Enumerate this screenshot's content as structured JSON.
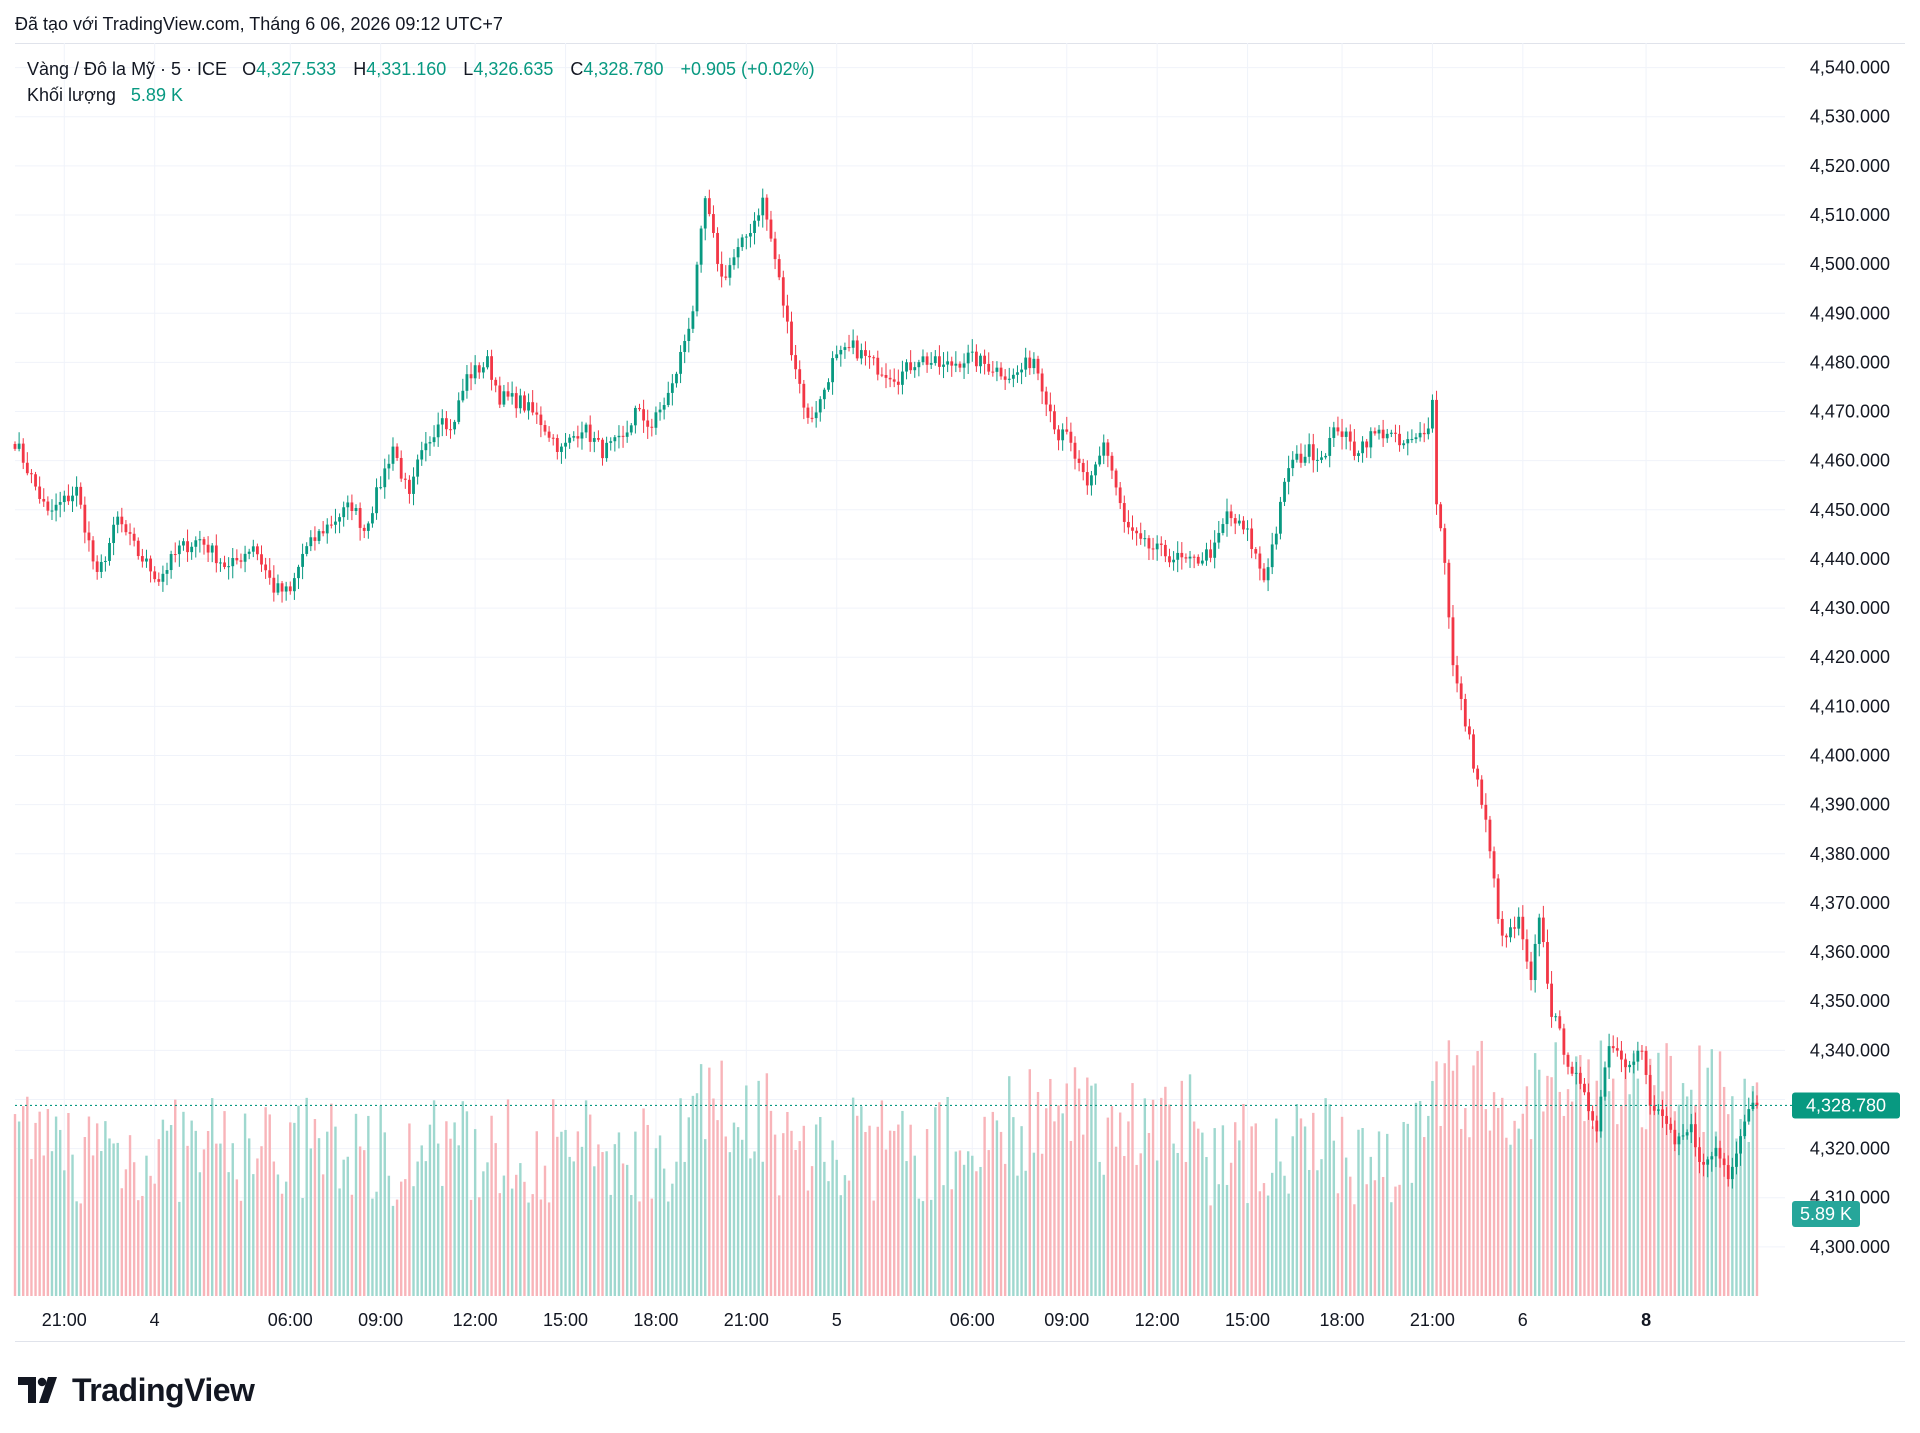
{
  "header": {
    "created_text": "Đã tạo với TradingView.com, Tháng 6 06, 2026 09:12 UTC+7"
  },
  "legend": {
    "symbol": "Vàng / Đô la Mỹ · 5 · ICE",
    "open_label": "O",
    "open": "4,327.533",
    "high_label": "H",
    "high": "4,331.160",
    "low_label": "L",
    "low": "4,326.635",
    "close_label": "C",
    "close": "4,328.780",
    "change": "+0.905 (+0.02%)",
    "volume_label": "Khối lượng",
    "volume_value": "5.89 K"
  },
  "colors": {
    "up": "#089981",
    "down": "#f23645",
    "up_volume": "#9fd8cf",
    "down_volume": "#f8b4b9",
    "grid": "#f0f3fa",
    "text": "#131722"
  },
  "brand": {
    "name": "TradingView",
    "logo_icon": "tradingview-logo-icon"
  },
  "chart_data": {
    "type": "candlestick",
    "title": "Vàng / Đô la Mỹ · 5 · ICE",
    "interval": "5",
    "y_axis": {
      "position": "right",
      "ylim": [
        4290,
        4545
      ],
      "ticks": [
        "4,300.000",
        "4,310.000",
        "4,320.000",
        "4,330.000",
        "4,340.000",
        "4,350.000",
        "4,360.000",
        "4,370.000",
        "4,380.000",
        "4,390.000",
        "4,400.000",
        "4,410.000",
        "4,420.000",
        "4,430.000",
        "4,440.000",
        "4,450.000",
        "4,460.000",
        "4,470.000",
        "4,480.000",
        "4,490.000",
        "4,500.000",
        "4,510.000",
        "4,520.000",
        "4,530.000",
        "4,540.000"
      ],
      "tick_values": [
        4300,
        4310,
        4320,
        4330,
        4340,
        4350,
        4360,
        4370,
        4380,
        4390,
        4400,
        4410,
        4420,
        4430,
        4440,
        4450,
        4460,
        4470,
        4480,
        4490,
        4500,
        4510,
        4520,
        4530,
        4540
      ]
    },
    "x_axis": {
      "labels": [
        "21:00",
        "4",
        "06:00",
        "09:00",
        "12:00",
        "15:00",
        "18:00",
        "21:00",
        "5",
        "06:00",
        "09:00",
        "12:00",
        "15:00",
        "18:00",
        "21:00",
        "6",
        "8"
      ],
      "label_bars": [
        12,
        34,
        67,
        89,
        112,
        134,
        156,
        178,
        200,
        233,
        256,
        278,
        300,
        323,
        345,
        367,
        397
      ]
    },
    "last_price": {
      "value": 4328.78,
      "label": "4,328.780"
    },
    "last_volume": {
      "label": "5.89 K"
    },
    "grid": true,
    "close_path": [
      [
        0,
        4464
      ],
      [
        8,
        4449
      ],
      [
        15,
        4454
      ],
      [
        20,
        4436
      ],
      [
        25,
        4448
      ],
      [
        30,
        4441
      ],
      [
        35,
        4436
      ],
      [
        40,
        4442
      ],
      [
        45,
        4444
      ],
      [
        52,
        4438
      ],
      [
        58,
        4443
      ],
      [
        63,
        4434
      ],
      [
        67,
        4433
      ],
      [
        70,
        4441
      ],
      [
        75,
        4446
      ],
      [
        82,
        4451
      ],
      [
        85,
        4446
      ],
      [
        88,
        4453
      ],
      [
        92,
        4463
      ],
      [
        96,
        4452
      ],
      [
        98,
        4459
      ],
      [
        104,
        4470
      ],
      [
        106,
        4466
      ],
      [
        110,
        4477
      ],
      [
        115,
        4480
      ],
      [
        118,
        4473
      ],
      [
        123,
        4472
      ],
      [
        128,
        4468
      ],
      [
        133,
        4462
      ],
      [
        138,
        4467
      ],
      [
        143,
        4462
      ],
      [
        148,
        4464
      ],
      [
        151,
        4470
      ],
      [
        155,
        4467
      ],
      [
        160,
        4475
      ],
      [
        165,
        4491
      ],
      [
        168,
        4513
      ],
      [
        172,
        4497
      ],
      [
        177,
        4504
      ],
      [
        180,
        4509
      ],
      [
        182,
        4513
      ],
      [
        185,
        4501
      ],
      [
        189,
        4483
      ],
      [
        193,
        4468
      ],
      [
        196,
        4472
      ],
      [
        199,
        4480
      ],
      [
        204,
        4483
      ],
      [
        210,
        4479
      ],
      [
        215,
        4477
      ],
      [
        220,
        4481
      ],
      [
        226,
        4479
      ],
      [
        232,
        4481
      ],
      [
        238,
        4479
      ],
      [
        243,
        4477
      ],
      [
        248,
        4481
      ],
      [
        254,
        4465
      ],
      [
        256,
        4465
      ],
      [
        261,
        4454
      ],
      [
        265,
        4464
      ],
      [
        267,
        4458
      ],
      [
        270,
        4447
      ],
      [
        274,
        4443
      ],
      [
        280,
        4441
      ],
      [
        286,
        4439
      ],
      [
        292,
        4442
      ],
      [
        295,
        4449
      ],
      [
        300,
        4445
      ],
      [
        304,
        4436
      ],
      [
        307,
        4446
      ],
      [
        310,
        4459
      ],
      [
        315,
        4462
      ],
      [
        318,
        4461
      ],
      [
        322,
        4467
      ],
      [
        326,
        4462
      ],
      [
        330,
        4465
      ],
      [
        334,
        4466
      ],
      [
        337,
        4463
      ],
      [
        341,
        4464
      ],
      [
        344,
        4468
      ],
      [
        345,
        4472
      ],
      [
        346,
        4452
      ],
      [
        348,
        4440
      ],
      [
        350,
        4418
      ],
      [
        354,
        4403
      ],
      [
        358,
        4386
      ],
      [
        362,
        4362
      ],
      [
        366,
        4366
      ],
      [
        369,
        4353
      ],
      [
        371,
        4368
      ],
      [
        374,
        4348
      ],
      [
        378,
        4338
      ],
      [
        382,
        4330
      ],
      [
        385,
        4325
      ],
      [
        388,
        4342
      ],
      [
        392,
        4338
      ],
      [
        396,
        4340
      ],
      [
        398,
        4328
      ],
      [
        401,
        4327
      ],
      [
        404,
        4320
      ],
      [
        408,
        4324
      ],
      [
        411,
        4316
      ],
      [
        414,
        4320
      ],
      [
        417,
        4315
      ],
      [
        420,
        4323
      ],
      [
        422,
        4329
      ],
      [
        424,
        4328.78
      ]
    ],
    "bars_total": 425
  }
}
